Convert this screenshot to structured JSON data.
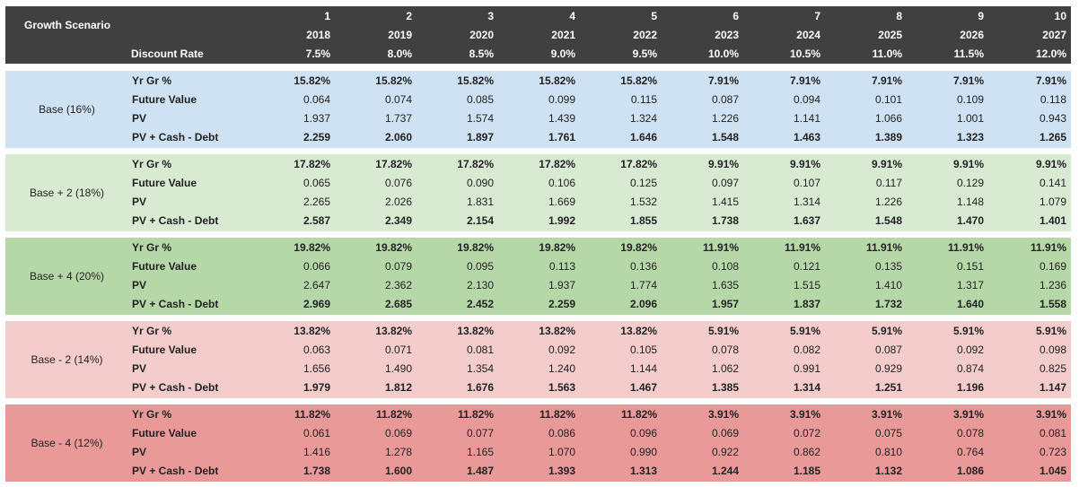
{
  "header": {
    "title": "Growth Scenario",
    "discount_label": "Discount Rate",
    "periods": [
      "1",
      "2",
      "3",
      "4",
      "5",
      "6",
      "7",
      "8",
      "9",
      "10"
    ],
    "years": [
      "2018",
      "2019",
      "2020",
      "2021",
      "2022",
      "2023",
      "2024",
      "2025",
      "2026",
      "2027"
    ],
    "discount_rates": [
      "7.5%",
      "8.0%",
      "8.5%",
      "9.0%",
      "9.5%",
      "10.0%",
      "10.5%",
      "11.0%",
      "11.5%",
      "12.0%"
    ]
  },
  "row_labels": [
    "Yr Gr %",
    "Future Value",
    "PV",
    "PV + Cash - Debt"
  ],
  "colors": {
    "header_bg": "#404040",
    "base": "#cfe2f3",
    "base_plus_2": "#d9ead3",
    "base_plus_4": "#b6d7a8",
    "base_minus_2": "#f4cccc",
    "base_minus_4": "#ea9999"
  },
  "scenarios": [
    {
      "name": "Base (16%)",
      "color": "#cfe2f3",
      "yr_gr": [
        "15.82%",
        "15.82%",
        "15.82%",
        "15.82%",
        "15.82%",
        "7.91%",
        "7.91%",
        "7.91%",
        "7.91%",
        "7.91%"
      ],
      "future_value": [
        "0.064",
        "0.074",
        "0.085",
        "0.099",
        "0.115",
        "0.087",
        "0.094",
        "0.101",
        "0.109",
        "0.118"
      ],
      "pv": [
        "1.937",
        "1.737",
        "1.574",
        "1.439",
        "1.324",
        "1.226",
        "1.141",
        "1.066",
        "1.001",
        "0.943"
      ],
      "pv_cash_debt": [
        "2.259",
        "2.060",
        "1.897",
        "1.761",
        "1.646",
        "1.548",
        "1.463",
        "1.389",
        "1.323",
        "1.265"
      ]
    },
    {
      "name": "Base + 2 (18%)",
      "color": "#d9ead3",
      "yr_gr": [
        "17.82%",
        "17.82%",
        "17.82%",
        "17.82%",
        "17.82%",
        "9.91%",
        "9.91%",
        "9.91%",
        "9.91%",
        "9.91%"
      ],
      "future_value": [
        "0.065",
        "0.076",
        "0.090",
        "0.106",
        "0.125",
        "0.097",
        "0.107",
        "0.117",
        "0.129",
        "0.141"
      ],
      "pv": [
        "2.265",
        "2.026",
        "1.831",
        "1.669",
        "1.532",
        "1.415",
        "1.314",
        "1.226",
        "1.148",
        "1.079"
      ],
      "pv_cash_debt": [
        "2.587",
        "2.349",
        "2.154",
        "1.992",
        "1.855",
        "1.738",
        "1.637",
        "1.548",
        "1.470",
        "1.401"
      ]
    },
    {
      "name": "Base + 4 (20%)",
      "color": "#b6d7a8",
      "yr_gr": [
        "19.82%",
        "19.82%",
        "19.82%",
        "19.82%",
        "19.82%",
        "11.91%",
        "11.91%",
        "11.91%",
        "11.91%",
        "11.91%"
      ],
      "future_value": [
        "0.066",
        "0.079",
        "0.095",
        "0.113",
        "0.136",
        "0.108",
        "0.121",
        "0.135",
        "0.151",
        "0.169"
      ],
      "pv": [
        "2.647",
        "2.362",
        "2.130",
        "1.937",
        "1.774",
        "1.635",
        "1.515",
        "1.410",
        "1.317",
        "1.236"
      ],
      "pv_cash_debt": [
        "2.969",
        "2.685",
        "2.452",
        "2.259",
        "2.096",
        "1.957",
        "1.837",
        "1.732",
        "1.640",
        "1.558"
      ]
    },
    {
      "name": "Base - 2 (14%)",
      "color": "#f4cccc",
      "yr_gr": [
        "13.82%",
        "13.82%",
        "13.82%",
        "13.82%",
        "13.82%",
        "5.91%",
        "5.91%",
        "5.91%",
        "5.91%",
        "5.91%"
      ],
      "future_value": [
        "0.063",
        "0.071",
        "0.081",
        "0.092",
        "0.105",
        "0.078",
        "0.082",
        "0.087",
        "0.092",
        "0.098"
      ],
      "pv": [
        "1.656",
        "1.490",
        "1.354",
        "1.240",
        "1.144",
        "1.062",
        "0.991",
        "0.929",
        "0.874",
        "0.825"
      ],
      "pv_cash_debt": [
        "1.979",
        "1.812",
        "1.676",
        "1.563",
        "1.467",
        "1.385",
        "1.314",
        "1.251",
        "1.196",
        "1.147"
      ]
    },
    {
      "name": "Base - 4 (12%)",
      "color": "#ea9999",
      "yr_gr": [
        "11.82%",
        "11.82%",
        "11.82%",
        "11.82%",
        "11.82%",
        "3.91%",
        "3.91%",
        "3.91%",
        "3.91%",
        "3.91%"
      ],
      "future_value": [
        "0.061",
        "0.069",
        "0.077",
        "0.086",
        "0.096",
        "0.069",
        "0.072",
        "0.075",
        "0.078",
        "0.081"
      ],
      "pv": [
        "1.416",
        "1.278",
        "1.165",
        "1.070",
        "0.990",
        "0.922",
        "0.862",
        "0.810",
        "0.764",
        "0.723"
      ],
      "pv_cash_debt": [
        "1.738",
        "1.600",
        "1.487",
        "1.393",
        "1.313",
        "1.244",
        "1.185",
        "1.132",
        "1.086",
        "1.045"
      ]
    }
  ]
}
